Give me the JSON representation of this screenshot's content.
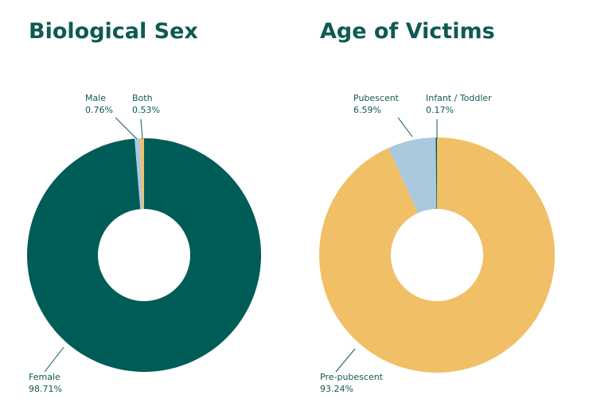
{
  "chart_data": [
    {
      "type": "donut",
      "title": "Biological Sex",
      "categories": [
        "Female",
        "Male",
        "Both"
      ],
      "values": [
        98.71,
        0.76,
        0.53
      ],
      "value_labels": [
        "98.71%",
        "0.76%",
        "0.53%"
      ],
      "colors": [
        "#005c57",
        "#a9c9dd",
        "#f0bf66"
      ]
    },
    {
      "type": "donut",
      "title": "Age of Victims",
      "categories": [
        "Pre-pubescent",
        "Pubescent",
        "Infant / Toddler"
      ],
      "values": [
        93.24,
        6.59,
        0.17
      ],
      "value_labels": [
        "93.24%",
        "6.59%",
        "0.17%"
      ],
      "colors": [
        "#f0bf66",
        "#a9c9dd",
        "#005c57"
      ]
    }
  ]
}
